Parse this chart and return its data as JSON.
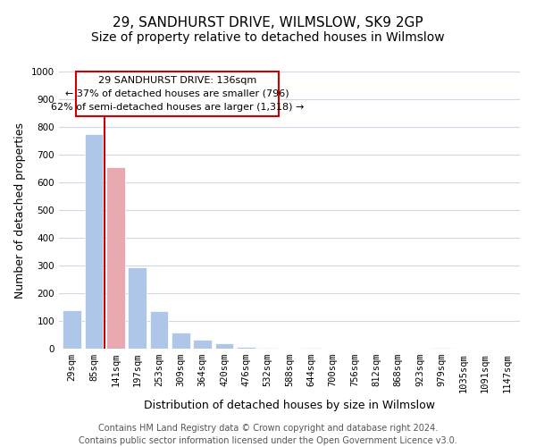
{
  "title": "29, SANDHURST DRIVE, WILMSLOW, SK9 2GP",
  "subtitle": "Size of property relative to detached houses in Wilmslow",
  "xlabel": "Distribution of detached houses by size in Wilmslow",
  "ylabel": "Number of detached properties",
  "bar_labels": [
    "29sqm",
    "85sqm",
    "141sqm",
    "197sqm",
    "253sqm",
    "309sqm",
    "364sqm",
    "420sqm",
    "476sqm",
    "532sqm",
    "588sqm",
    "644sqm",
    "700sqm",
    "756sqm",
    "812sqm",
    "868sqm",
    "923sqm",
    "979sqm",
    "1035sqm",
    "1091sqm",
    "1147sqm"
  ],
  "bar_values": [
    140,
    775,
    655,
    295,
    135,
    57,
    32,
    18,
    8,
    2,
    0,
    3,
    0,
    0,
    0,
    0,
    0,
    2,
    0,
    0,
    0
  ],
  "bar_color": "#aec6e8",
  "highlight_bar_index": 2,
  "highlight_bar_color": "#e8aab0",
  "vline_color": "#cc0000",
  "ylim": [
    0,
    1000
  ],
  "yticks": [
    0,
    100,
    200,
    300,
    400,
    500,
    600,
    700,
    800,
    900,
    1000
  ],
  "annotation_line1": "29 SANDHURST DRIVE: 136sqm",
  "annotation_line2": "← 37% of detached houses are smaller (796)",
  "annotation_line3": "62% of semi-detached houses are larger (1,318) →",
  "footer_line1": "Contains HM Land Registry data © Crown copyright and database right 2024.",
  "footer_line2": "Contains public sector information licensed under the Open Government Licence v3.0.",
  "bg_color": "#ffffff",
  "grid_color": "#d0d8e8",
  "title_fontsize": 11,
  "subtitle_fontsize": 10,
  "axis_label_fontsize": 9,
  "tick_fontsize": 7.5,
  "footer_fontsize": 7
}
